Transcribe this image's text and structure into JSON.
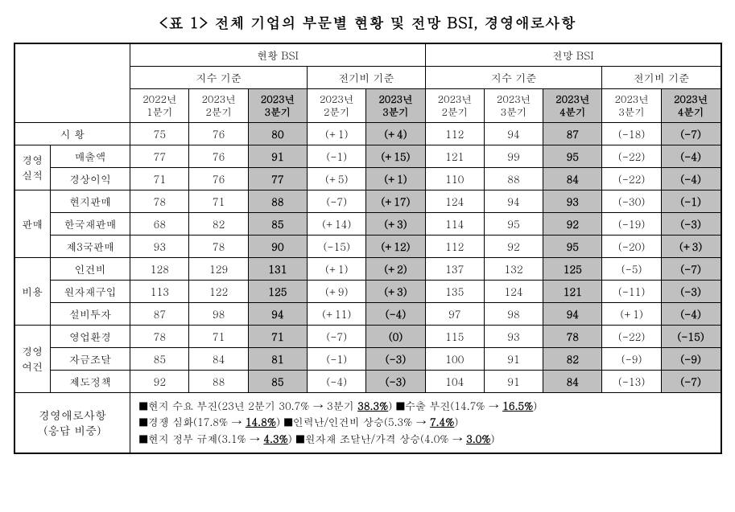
{
  "title": "<표 1> 전체 기업의 부문별 현황 및 전망 BSI, 경영애로사항",
  "headers": {
    "status": "현황 BSI",
    "outlook": "전망 BSI",
    "index_basis": "지수 기준",
    "qoq_basis": "전기비 기준",
    "periods": {
      "p1": "2022년\n1분기",
      "p2": "2023년\n2분기",
      "p3": "2023년\n3분기",
      "p4": "2023년\n2분기",
      "p5": "2023년\n3분기",
      "p6": "2023년\n2분기",
      "p7": "2023년\n3분기",
      "p8": "2023년\n4분기",
      "p9": "2023년\n3분기",
      "p10": "2023년\n4분기"
    }
  },
  "groups": {
    "sihwang": "시  황",
    "perf": "경영\n실적",
    "sales": "판매",
    "cost": "비용",
    "env": "경영\n여건"
  },
  "rows": [
    {
      "group": "sihwang",
      "label": "",
      "v": [
        "75",
        "76",
        "80",
        "(+1)",
        "(+4)",
        "112",
        "94",
        "87",
        "(-18)",
        "(-7)"
      ]
    },
    {
      "group": "perf",
      "label": "매출액",
      "v": [
        "77",
        "76",
        "91",
        "(-1)",
        "(+15)",
        "121",
        "99",
        "95",
        "(-22)",
        "(-4)"
      ]
    },
    {
      "group": "perf",
      "label": "경상이익",
      "v": [
        "71",
        "76",
        "77",
        "(+5)",
        "(+1)",
        "110",
        "88",
        "84",
        "(-22)",
        "(-4)"
      ]
    },
    {
      "group": "sales",
      "label": "현지판매",
      "v": [
        "78",
        "71",
        "88",
        "(-7)",
        "(+17)",
        "124",
        "94",
        "93",
        "(-30)",
        "(-1)"
      ]
    },
    {
      "group": "sales",
      "label": "한국재판매",
      "v": [
        "68",
        "82",
        "85",
        "(+14)",
        "(+3)",
        "114",
        "95",
        "92",
        "(-19)",
        "(-3)"
      ]
    },
    {
      "group": "sales",
      "label": "제3국판매",
      "v": [
        "93",
        "78",
        "90",
        "(-15)",
        "(+12)",
        "112",
        "92",
        "95",
        "(-20)",
        "(+3)"
      ]
    },
    {
      "group": "cost",
      "label": "인건비",
      "v": [
        "128",
        "129",
        "131",
        "(+1)",
        "(+2)",
        "137",
        "132",
        "125",
        "(-5)",
        "(-7)"
      ]
    },
    {
      "group": "cost",
      "label": "원자재구입",
      "v": [
        "113",
        "122",
        "125",
        "(+9)",
        "(+3)",
        "135",
        "124",
        "121",
        "(-11)",
        "(-3)"
      ]
    },
    {
      "group": "cost",
      "label": "설비투자",
      "v": [
        "87",
        "98",
        "94",
        "(+11)",
        "(-4)",
        "97",
        "98",
        "94",
        "(+1)",
        "(-4)"
      ]
    },
    {
      "group": "env",
      "label": "영업환경",
      "v": [
        "78",
        "71",
        "71",
        "(-7)",
        "(0)",
        "115",
        "93",
        "78",
        "(-22)",
        "(-15)"
      ]
    },
    {
      "group": "env",
      "label": "자금조달",
      "v": [
        "85",
        "84",
        "81",
        "(-1)",
        "(-3)",
        "100",
        "91",
        "82",
        "(-9)",
        "(-9)"
      ]
    },
    {
      "group": "env",
      "label": "제도정책",
      "v": [
        "92",
        "88",
        "85",
        "(-4)",
        "(-3)",
        "104",
        "91",
        "84",
        "(-13)",
        "(-7)"
      ]
    }
  ],
  "footer": {
    "label": "경영애로사항\n(응답 비중)",
    "l1a": "■현지 수요 부진(23년 2분기 30.7% → 3분기 ",
    "l1a_u": "38.3%",
    "l1a_end": ") ",
    "l1b": "■수출 부진(14.7% → ",
    "l1b_u": "16.5%",
    "l1b_end": ")",
    "l2a": "■경쟁 심화(17.8% → ",
    "l2a_u": "14.8%",
    "l2a_end": ")    ",
    "l2b": "■인력난/인건비 상승(5.3% → ",
    "l2b_u": "7.4%",
    "l2b_end": ")",
    "l3a": "■현지 정부 규제(3.1% → ",
    "l3a_u": "4.3%",
    "l3a_end": ")  ",
    "l3b": "■원자재 조달난/가격 상승(4.0% → ",
    "l3b_u": "3.0%",
    "l3b_end": ")"
  }
}
